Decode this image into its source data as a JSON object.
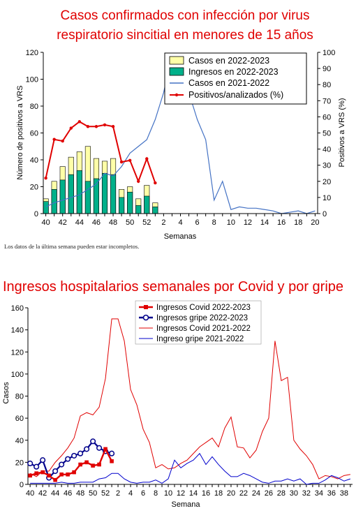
{
  "chart_data": [
    {
      "type": "bar",
      "title_line1": "Casos confirmados con infección por virus",
      "title_line2": "respiratorio sincitial en menores de 15 años",
      "ylabel": "Número de positivos a VRS",
      "y2label": "Positivos a VRS (%)",
      "xlabel": "Semanas",
      "note": "Los datos de la última semana pueden estar incompletos.",
      "ylim": [
        0,
        120
      ],
      "y2lim": [
        0,
        100
      ],
      "yticks": [
        "0",
        "20",
        "40",
        "60",
        "80",
        "100",
        "120"
      ],
      "y2ticks": [
        "0",
        "10",
        "20",
        "30",
        "40",
        "50",
        "60",
        "70",
        "80",
        "90",
        "100"
      ],
      "weeks": [
        "40",
        "41",
        "42",
        "43",
        "44",
        "45",
        "46",
        "47",
        "48",
        "49",
        "50",
        "51",
        "52",
        "1",
        "2",
        "3",
        "4",
        "5",
        "6",
        "7",
        "8",
        "9",
        "10",
        "11",
        "12",
        "13",
        "14",
        "15",
        "16",
        "17",
        "18",
        "19",
        "20"
      ],
      "xtick_labels": [
        "40",
        "42",
        "44",
        "46",
        "48",
        "50",
        "52",
        "2",
        "4",
        "6",
        "8",
        "10",
        "12",
        "14",
        "16",
        "18",
        "20"
      ],
      "legend_position": "top-right",
      "series": [
        {
          "name": "Casos en 2022-2023",
          "kind": "bar",
          "color": "#ffffa8",
          "values": [
            11,
            24,
            35,
            42,
            46,
            50,
            41,
            39,
            41,
            18,
            20,
            11,
            21,
            8
          ]
        },
        {
          "name": "Ingresos en 2022-2023",
          "kind": "bar",
          "color": "#00b08a",
          "values": [
            9,
            18,
            25,
            29,
            32,
            24,
            26,
            30,
            29,
            12,
            16,
            6,
            13,
            5
          ]
        },
        {
          "name": "Casos en 2021-2022",
          "kind": "line",
          "color": "#4472c4",
          "values": [
            5,
            8,
            10,
            12,
            14,
            18,
            22,
            30,
            28,
            35,
            45,
            50,
            55,
            70,
            90,
            119,
            110,
            90,
            70,
            55,
            10,
            24,
            3,
            5,
            4,
            4,
            3,
            2,
            0,
            1,
            2,
            0,
            2
          ]
        },
        {
          "name": "Positivos/analizados (%)",
          "kind": "line",
          "axis": "right",
          "color": "#e00000",
          "values": [
            22,
            46,
            45,
            53,
            57,
            54,
            54,
            55,
            54,
            32,
            33,
            20,
            34,
            19
          ]
        }
      ]
    },
    {
      "type": "line",
      "title": "Ingresos hospitalarios semanales por Covid y por gripe",
      "ylabel": "Casos",
      "xlabel": "Semana",
      "ylim": [
        0,
        160
      ],
      "yticks": [
        "0",
        "20",
        "40",
        "60",
        "80",
        "100",
        "120",
        "140",
        "160"
      ],
      "weeks": [
        "40",
        "41",
        "42",
        "43",
        "44",
        "45",
        "46",
        "47",
        "48",
        "49",
        "50",
        "51",
        "52",
        "1",
        "2",
        "3",
        "4",
        "5",
        "6",
        "7",
        "8",
        "9",
        "10",
        "11",
        "12",
        "13",
        "14",
        "15",
        "16",
        "17",
        "18",
        "19",
        "20",
        "21",
        "22",
        "23",
        "24",
        "25",
        "26",
        "27",
        "28",
        "29",
        "30",
        "31",
        "32",
        "33",
        "34",
        "35",
        "36",
        "37",
        "38",
        "39"
      ],
      "xtick_labels": [
        "40",
        "42",
        "44",
        "46",
        "48",
        "50",
        "52",
        "2",
        "4",
        "6",
        "8",
        "10",
        "12",
        "14",
        "16",
        "18",
        "20",
        "22",
        "24",
        "26",
        "28",
        "30",
        "32",
        "34",
        "36",
        "38"
      ],
      "legend_position": "top-center",
      "series": [
        {
          "name": "Ingresos Covid 2022-2023",
          "color": "#e00000",
          "style": "thick-square",
          "values": [
            8,
            10,
            11,
            8,
            4,
            9,
            9,
            11,
            18,
            20,
            17,
            18,
            32,
            21
          ]
        },
        {
          "name": "Ingresos gripe 2022-2023",
          "color": "#00008b",
          "style": "thick-circle",
          "values": [
            19,
            16,
            22,
            6,
            12,
            18,
            23,
            26,
            28,
            32,
            39,
            33,
            30,
            28
          ]
        },
        {
          "name": "Ingresos Covid 2021-2022",
          "color": "#e00000",
          "style": "thin",
          "values": [
            10,
            7,
            12,
            12,
            20,
            26,
            33,
            42,
            62,
            65,
            63,
            70,
            96,
            150,
            150,
            130,
            86,
            72,
            50,
            38,
            15,
            18,
            14,
            15,
            19,
            22,
            28,
            34,
            38,
            42,
            34,
            51,
            61,
            34,
            33,
            24,
            31,
            48,
            60,
            130,
            94,
            97,
            40,
            32,
            26,
            18,
            5,
            8,
            7,
            5,
            8,
            9
          ]
        },
        {
          "name": "Ingreso gripe 2021-2022",
          "color": "#0000cc",
          "style": "thin",
          "values": [
            1,
            1,
            1,
            1,
            1,
            2,
            1,
            1,
            2,
            2,
            2,
            5,
            6,
            10,
            10,
            5,
            2,
            1,
            2,
            2,
            4,
            1,
            5,
            22,
            15,
            19,
            22,
            28,
            18,
            25,
            18,
            12,
            7,
            7,
            10,
            8,
            5,
            2,
            1,
            3,
            3,
            5,
            3,
            5,
            0,
            1,
            1,
            4,
            8,
            6,
            3,
            5
          ]
        }
      ]
    }
  ]
}
